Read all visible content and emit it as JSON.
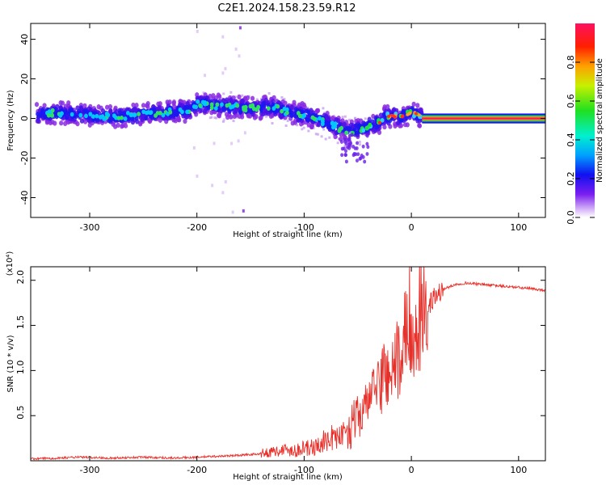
{
  "title": "C2E1.2024.158.23.59.R12",
  "chart_data": [
    {
      "type": "heatmap",
      "xlabel": "Height of straight line (km)",
      "ylabel": "Frequency (Hz)",
      "xlim": [
        -355,
        125
      ],
      "ylim": [
        -50,
        48
      ],
      "xticks": [
        -300,
        -200,
        -100,
        0,
        100
      ],
      "yticks": [
        40,
        20,
        0,
        -20,
        -40
      ],
      "colorbar_label": "Normalized spectral amplitude",
      "colorbar_ticks": [
        0.0,
        0.2,
        0.4,
        0.6,
        0.8
      ],
      "colorbar_range": [
        0,
        1
      ],
      "ridge": {
        "x": [
          -350,
          -330,
          -310,
          -290,
          -270,
          -250,
          -230,
          -210,
          -200,
          -190,
          -170,
          -150,
          -130,
          -120,
          -110,
          -100,
          -90,
          -80,
          -70,
          -60,
          -50,
          -45,
          -40,
          -30,
          -25,
          -20,
          -10,
          0,
          5,
          10,
          125
        ],
        "y": [
          2,
          3,
          2,
          1,
          1,
          2,
          3,
          4,
          7,
          7,
          6,
          5,
          6,
          4,
          3,
          2,
          0,
          -2,
          -4,
          -7,
          -5,
          -5,
          -4,
          -2,
          1,
          1,
          1,
          3,
          2,
          0,
          0
        ]
      }
    },
    {
      "type": "line",
      "xlabel": "Height of straight line (km)",
      "ylabel": "SNR (10 * v/v)",
      "y_multiplier": "(x10⁴)",
      "xlim": [
        -355,
        125
      ],
      "ylim": [
        0,
        2.15
      ],
      "xticks": [
        -300,
        -200,
        -100,
        0,
        100
      ],
      "yticks": [
        0.5,
        1.0,
        1.5,
        2.0
      ],
      "ytick_labels": [
        "0.5",
        "1.0",
        "1.5",
        "2.0"
      ],
      "series": [
        {
          "name": "SNR",
          "color": "#e8302a",
          "x": [
            -355,
            -330,
            -310,
            -280,
            -250,
            -220,
            -200,
            -180,
            -160,
            -140,
            -130,
            -120,
            -110,
            -100,
            -90,
            -80,
            -70,
            -60,
            -50,
            -40,
            -30,
            -20,
            -10,
            0,
            10,
            15,
            20,
            30,
            40,
            50,
            60,
            80,
            100,
            125
          ],
          "y": [
            0.02,
            0.03,
            0.04,
            0.03,
            0.04,
            0.03,
            0.04,
            0.05,
            0.06,
            0.08,
            0.1,
            0.12,
            0.12,
            0.13,
            0.15,
            0.2,
            0.25,
            0.33,
            0.48,
            0.65,
            0.9,
            1.0,
            1.1,
            1.2,
            1.5,
            1.65,
            1.8,
            1.9,
            1.95,
            1.97,
            1.96,
            1.94,
            1.92,
            1.89
          ]
        }
      ]
    }
  ]
}
